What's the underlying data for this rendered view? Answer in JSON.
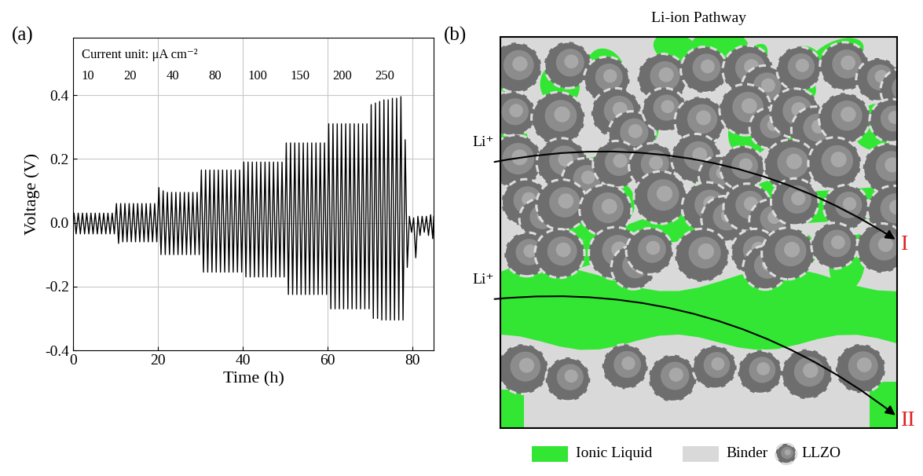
{
  "chart_data": {
    "type": "line",
    "panel_label": "(a)",
    "xlabel": "Time (h)",
    "ylabel": "Voltage (V)",
    "annotation": "Current unit: μA cm⁻²",
    "currents": [
      10,
      20,
      40,
      80,
      100,
      150,
      200,
      250
    ],
    "step_start_h": [
      0,
      10,
      20,
      30,
      40,
      50,
      60,
      70
    ],
    "xlim": [
      0,
      85
    ],
    "ylim": [
      -0.4,
      0.58
    ],
    "xticks": [
      0,
      20,
      40,
      60,
      80
    ],
    "yticks": [
      -0.4,
      -0.2,
      0.0,
      0.2,
      0.4
    ],
    "grid": true,
    "color": "#000000",
    "x": [
      0,
      0.25,
      0.75,
      1.25,
      1.75,
      2.25,
      2.75,
      3.25,
      3.75,
      4.25,
      4.75,
      5.25,
      5.75,
      6.25,
      6.75,
      7.25,
      7.75,
      8.25,
      8.75,
      9.25,
      9.75,
      10.25,
      10.75,
      11.25,
      11.75,
      12.25,
      12.75,
      13.25,
      13.75,
      14.25,
      14.75,
      15.25,
      15.75,
      16.25,
      16.75,
      17.25,
      17.75,
      18.25,
      18.75,
      19.25,
      19.75,
      20.25,
      20.75,
      21.25,
      21.75,
      22.25,
      22.75,
      23.25,
      23.75,
      24.25,
      24.75,
      25.25,
      25.75,
      26.25,
      26.75,
      27.25,
      27.75,
      28.25,
      28.75,
      29.25,
      29.75,
      30.25,
      30.75,
      31.25,
      31.75,
      32.25,
      32.75,
      33.25,
      33.75,
      34.25,
      34.75,
      35.25,
      35.75,
      36.25,
      36.75,
      37.25,
      37.75,
      38.25,
      38.75,
      39.25,
      39.75,
      40.25,
      40.75,
      41.25,
      41.75,
      42.25,
      42.75,
      43.25,
      43.75,
      44.25,
      44.75,
      45.25,
      45.75,
      46.25,
      46.75,
      47.25,
      47.75,
      48.25,
      48.75,
      49.25,
      49.75,
      50.25,
      50.75,
      51.25,
      51.75,
      52.25,
      52.75,
      53.25,
      53.75,
      54.25,
      54.75,
      55.25,
      55.75,
      56.25,
      56.75,
      57.25,
      57.75,
      58.25,
      58.75,
      59.25,
      59.75,
      60.25,
      60.75,
      61.25,
      61.75,
      62.25,
      62.75,
      63.25,
      63.75,
      64.25,
      64.75,
      65.25,
      65.75,
      66.25,
      66.75,
      67.25,
      67.75,
      68.25,
      68.75,
      69.25,
      69.75,
      70.25,
      70.75,
      71.25,
      71.75,
      72.25,
      72.75,
      73.25,
      73.75,
      74.25,
      74.75,
      75.25,
      75.75,
      76.25,
      76.75,
      77.25,
      77.75,
      78.25,
      78.75,
      79.25,
      79.75,
      80.25,
      80.75,
      81.25,
      81.75,
      82.25,
      82.75,
      83.25,
      83.75,
      84.25,
      84.75,
      85
    ],
    "values": [
      0,
      0.03,
      -0.035,
      0.03,
      -0.035,
      0.03,
      -0.035,
      0.03,
      -0.035,
      0.03,
      -0.035,
      0.03,
      -0.035,
      0.03,
      -0.035,
      0.03,
      -0.035,
      0.03,
      -0.035,
      0.03,
      -0.035,
      0.06,
      -0.065,
      0.06,
      -0.06,
      0.06,
      -0.06,
      0.06,
      -0.06,
      0.06,
      -0.06,
      0.06,
      -0.06,
      0.06,
      -0.06,
      0.06,
      -0.06,
      0.06,
      -0.06,
      0.06,
      -0.06,
      0.11,
      -0.1,
      0.1,
      -0.1,
      0.095,
      -0.1,
      0.095,
      -0.1,
      0.095,
      -0.1,
      0.095,
      -0.1,
      0.095,
      -0.1,
      0.095,
      -0.1,
      0.095,
      -0.1,
      0.095,
      -0.1,
      0.165,
      -0.155,
      0.165,
      -0.155,
      0.165,
      -0.155,
      0.165,
      -0.155,
      0.165,
      -0.155,
      0.165,
      -0.155,
      0.165,
      -0.155,
      0.165,
      -0.155,
      0.165,
      -0.155,
      0.165,
      -0.155,
      0.19,
      -0.17,
      0.19,
      -0.17,
      0.19,
      -0.17,
      0.19,
      -0.17,
      0.19,
      -0.17,
      0.19,
      -0.17,
      0.19,
      -0.17,
      0.19,
      -0.17,
      0.19,
      -0.17,
      0.19,
      -0.17,
      0.25,
      -0.225,
      0.25,
      -0.225,
      0.25,
      -0.225,
      0.25,
      -0.225,
      0.25,
      -0.225,
      0.25,
      -0.225,
      0.25,
      -0.225,
      0.25,
      -0.225,
      0.25,
      -0.225,
      0.25,
      -0.225,
      0.31,
      -0.27,
      0.31,
      -0.27,
      0.31,
      -0.27,
      0.31,
      -0.27,
      0.31,
      -0.27,
      0.31,
      -0.27,
      0.31,
      -0.27,
      0.31,
      -0.27,
      0.31,
      -0.27,
      0.31,
      -0.27,
      0.37,
      -0.3,
      0.375,
      -0.3,
      0.38,
      -0.305,
      0.385,
      -0.305,
      0.385,
      -0.305,
      0.39,
      -0.305,
      0.39,
      -0.305,
      0.395,
      -0.305,
      0.26,
      -0.14,
      0.02,
      -0.03,
      0.015,
      -0.11,
      0.02,
      -0.04,
      0.02,
      -0.03,
      0.02,
      -0.04,
      0.025,
      -0.05,
      0.02
    ]
  },
  "diagram": {
    "panel_label": "(b)",
    "title": "Li-ion Pathway",
    "pathways": [
      {
        "start_label": "Li⁺",
        "end_label": "I"
      },
      {
        "start_label": "Li⁺",
        "end_label": "II"
      }
    ],
    "end_label_color": "#e02020",
    "key_items": [
      {
        "label": "Ionic Liquid",
        "color": "#33e633"
      },
      {
        "label": "Binder",
        "color": "#d9d9d9"
      },
      {
        "label": "LLZO",
        "color": "#6e6e6e"
      }
    ]
  }
}
